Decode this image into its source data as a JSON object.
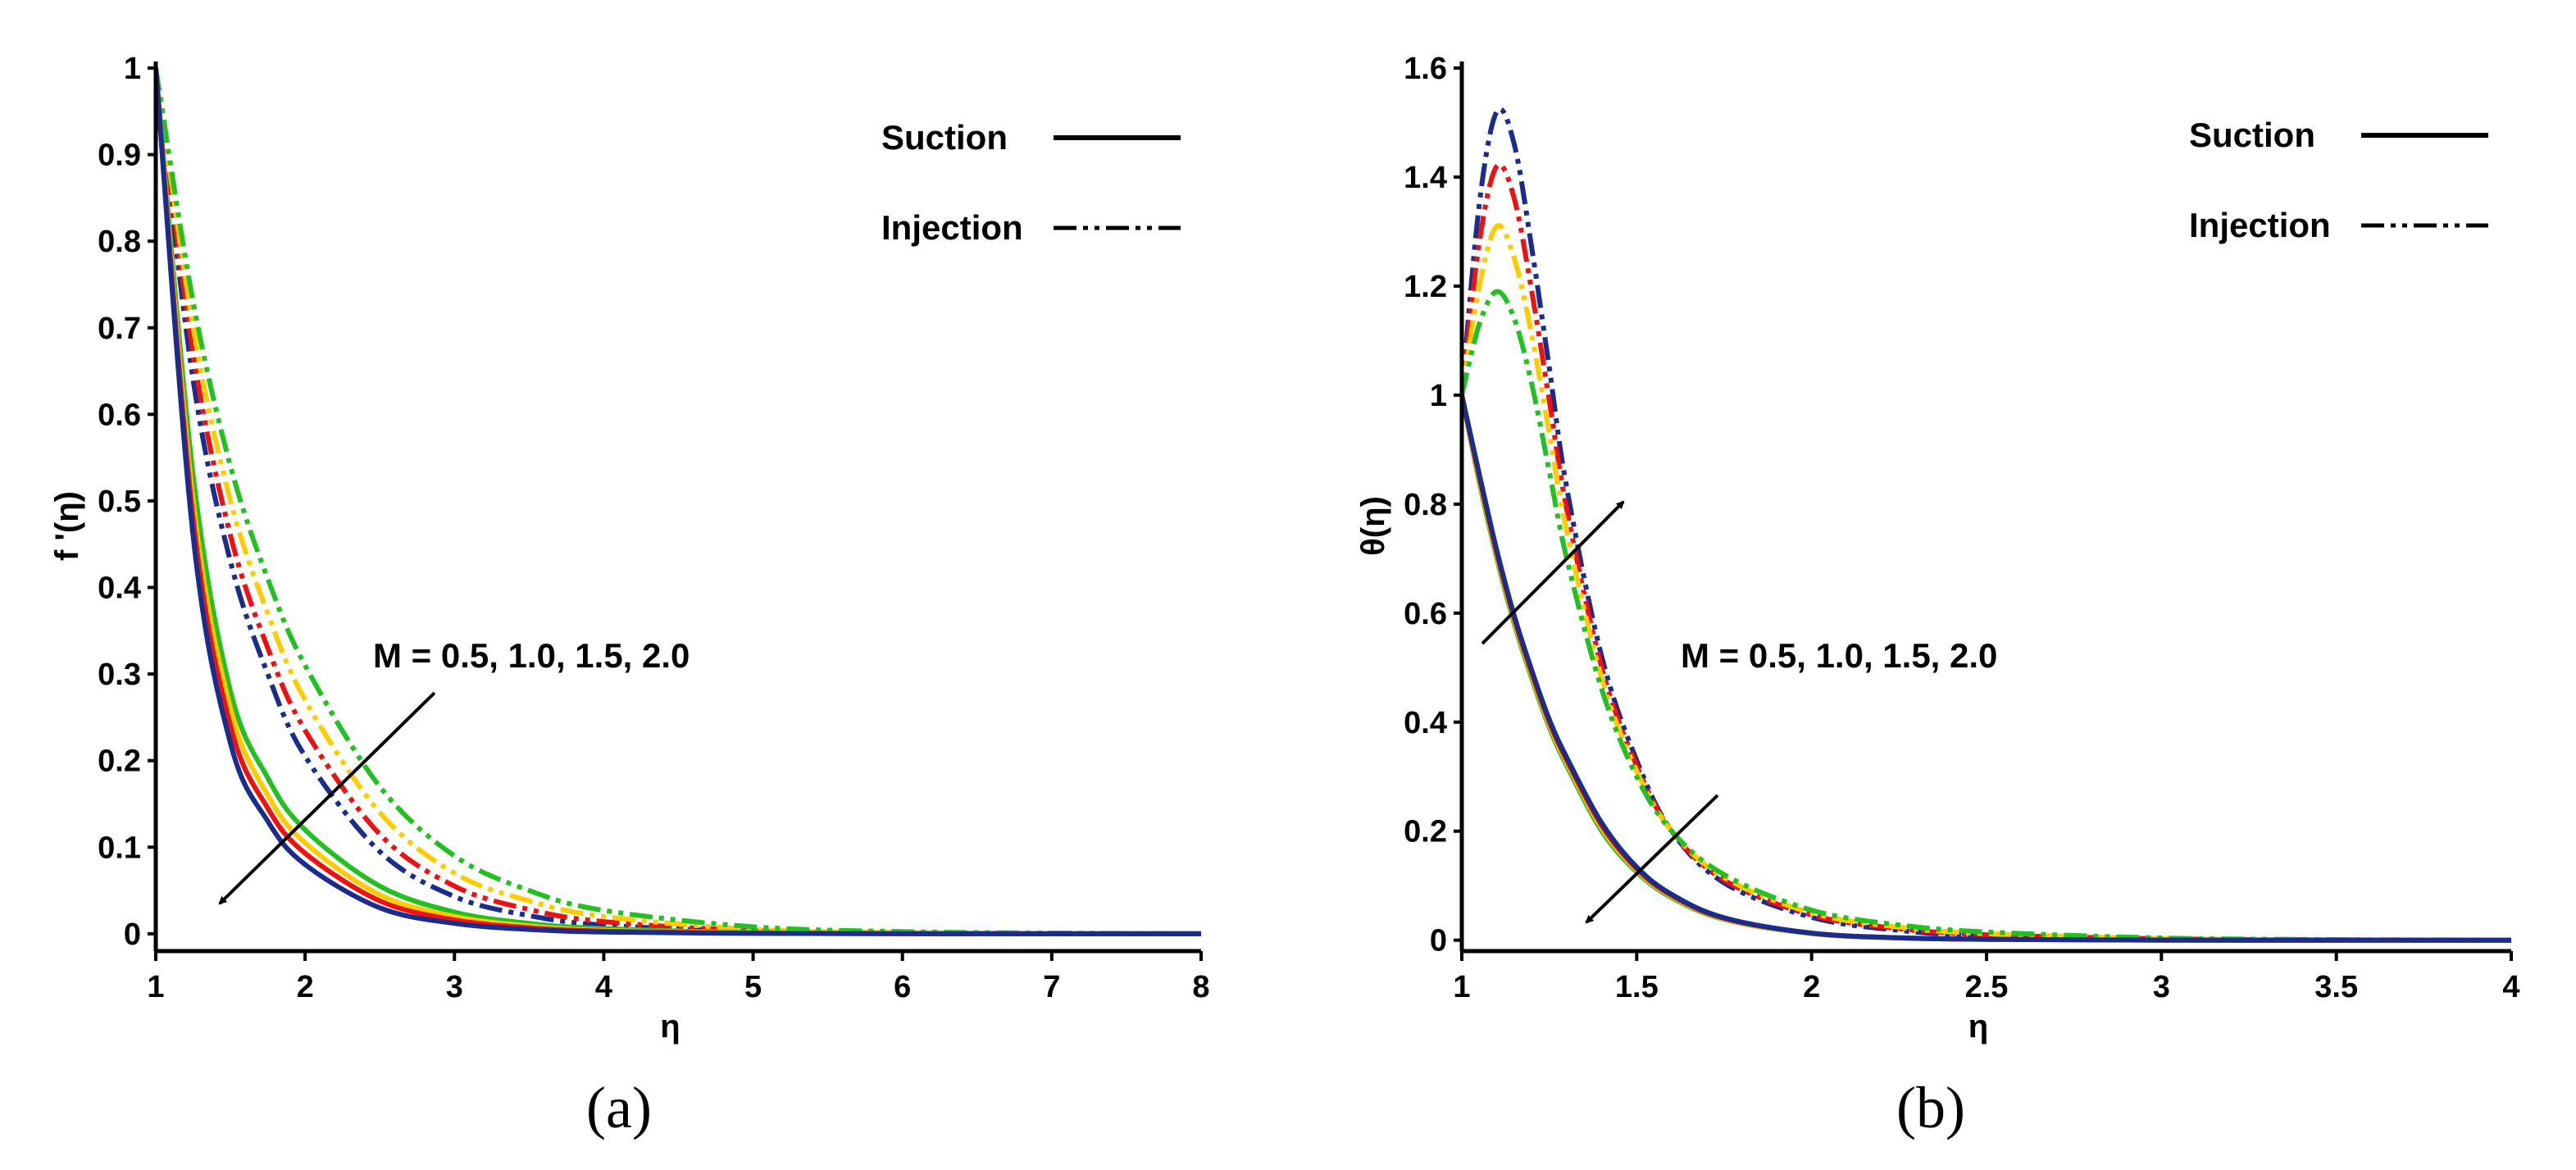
{
  "colors": {
    "green": "#22c022",
    "yellow": "#ffcc00",
    "red": "#ee1111",
    "blue": "#1a2c8c"
  },
  "chart_data": [
    {
      "type": "line",
      "panel_label": "(a)",
      "xlabel": "η",
      "ylabel": "f '(η)",
      "xlim": [
        1,
        8
      ],
      "ylim": [
        -0.02,
        1
      ],
      "xticks": [
        "1",
        "2",
        "3",
        "4",
        "5",
        "6",
        "7",
        "8"
      ],
      "yticks": [
        "0",
        "0.1",
        "0.2",
        "0.3",
        "0.4",
        "0.5",
        "0.6",
        "0.7",
        "0.8",
        "0.9",
        "1"
      ],
      "legend": {
        "suction": "Suction",
        "injection": "Injection",
        "placement": "top-right"
      },
      "annotation": "M = 0.5, 1.0, 1.5, 2.0",
      "x": [
        1,
        1.25,
        1.5,
        1.75,
        2,
        2.5,
        3,
        3.5,
        4,
        5,
        6,
        7,
        8
      ],
      "series": [
        {
          "name": "Suction M=0.5",
          "group": "suction",
          "color": "green",
          "values": [
            1,
            0.53,
            0.28,
            0.18,
            0.12,
            0.055,
            0.025,
            0.012,
            0.006,
            0.0015,
            0.0004,
            0.0001,
            0
          ]
        },
        {
          "name": "Suction M=1.0",
          "group": "suction",
          "color": "yellow",
          "values": [
            1,
            0.5,
            0.26,
            0.16,
            0.105,
            0.045,
            0.02,
            0.009,
            0.004,
            0.001,
            0.0003,
            0.0001,
            0
          ]
        },
        {
          "name": "Suction M=1.5",
          "group": "suction",
          "color": "red",
          "values": [
            1,
            0.48,
            0.24,
            0.145,
            0.093,
            0.038,
            0.016,
            0.007,
            0.003,
            0.0007,
            0.0002,
            0,
            0
          ]
        },
        {
          "name": "Suction M=2.0",
          "group": "suction",
          "color": "blue",
          "values": [
            1,
            0.46,
            0.22,
            0.13,
            0.08,
            0.03,
            0.012,
            0.005,
            0.002,
            0.0005,
            0.0001,
            0,
            0
          ]
        },
        {
          "name": "Injection M=0.5",
          "group": "injection",
          "color": "green",
          "values": [
            1,
            0.73,
            0.54,
            0.41,
            0.31,
            0.17,
            0.09,
            0.05,
            0.027,
            0.008,
            0.0025,
            0.0008,
            0.0002
          ]
        },
        {
          "name": "Injection M=1.0",
          "group": "injection",
          "color": "yellow",
          "values": [
            1,
            0.7,
            0.5,
            0.37,
            0.27,
            0.14,
            0.07,
            0.038,
            0.02,
            0.005,
            0.0015,
            0.0004,
            0.0001
          ]
        },
        {
          "name": "Injection M=1.5",
          "group": "injection",
          "color": "red",
          "values": [
            1,
            0.67,
            0.46,
            0.33,
            0.235,
            0.115,
            0.055,
            0.028,
            0.014,
            0.0035,
            0.001,
            0.0003,
            0.0001
          ]
        },
        {
          "name": "Injection M=2.0",
          "group": "injection",
          "color": "blue",
          "values": [
            1,
            0.64,
            0.43,
            0.3,
            0.205,
            0.095,
            0.043,
            0.021,
            0.01,
            0.0025,
            0.0007,
            0.0002,
            0
          ]
        }
      ]
    },
    {
      "type": "line",
      "panel_label": "(b)",
      "xlabel": "η",
      "ylabel": "θ(η)",
      "xlim": [
        1,
        4
      ],
      "ylim": [
        -0.02,
        1.6
      ],
      "xticks": [
        "1",
        "1.5",
        "2",
        "2.5",
        "3",
        "3.5",
        "4"
      ],
      "yticks": [
        "0",
        "0.2",
        "0.4",
        "0.6",
        "0.8",
        "1",
        "1.2",
        "1.4",
        "1.6"
      ],
      "legend": {
        "suction": "Suction",
        "injection": "Injection",
        "placement": "top-right"
      },
      "annotation": "M = 0.5, 1.0, 1.5, 2.0",
      "x": [
        1,
        1.05,
        1.1,
        1.15,
        1.2,
        1.25,
        1.3,
        1.4,
        1.5,
        1.6,
        1.75,
        2,
        2.25,
        2.5,
        3,
        3.5,
        4
      ],
      "series": [
        {
          "name": "Suction M=0.5",
          "group": "suction",
          "color": "green",
          "values": [
            1,
            0.84,
            0.7,
            0.58,
            0.48,
            0.39,
            0.32,
            0.2,
            0.125,
            0.078,
            0.038,
            0.012,
            0.004,
            0.0015,
            0.0002,
            0,
            0
          ]
        },
        {
          "name": "Suction M=1.0",
          "group": "suction",
          "color": "yellow",
          "values": [
            1,
            0.845,
            0.705,
            0.585,
            0.485,
            0.395,
            0.325,
            0.205,
            0.128,
            0.08,
            0.039,
            0.012,
            0.004,
            0.0015,
            0.0002,
            0,
            0
          ]
        },
        {
          "name": "Suction M=1.5",
          "group": "suction",
          "color": "red",
          "values": [
            1,
            0.85,
            0.71,
            0.59,
            0.49,
            0.4,
            0.33,
            0.21,
            0.131,
            0.082,
            0.04,
            0.013,
            0.0042,
            0.0016,
            0.0002,
            0,
            0
          ]
        },
        {
          "name": "Suction M=2.0",
          "group": "suction",
          "color": "blue",
          "values": [
            1,
            0.855,
            0.715,
            0.595,
            0.495,
            0.405,
            0.335,
            0.215,
            0.134,
            0.084,
            0.041,
            0.013,
            0.0044,
            0.0017,
            0.0002,
            0,
            0
          ]
        },
        {
          "name": "Injection M=0.5",
          "group": "injection",
          "color": "green",
          "values": [
            1,
            1.13,
            1.19,
            1.14,
            1.02,
            0.86,
            0.7,
            0.46,
            0.3,
            0.2,
            0.12,
            0.055,
            0.028,
            0.015,
            0.004,
            0.001,
            0.0003
          ]
        },
        {
          "name": "Injection M=1.0",
          "group": "injection",
          "color": "yellow",
          "values": [
            1,
            1.2,
            1.31,
            1.25,
            1.11,
            0.93,
            0.75,
            0.48,
            0.31,
            0.2,
            0.115,
            0.05,
            0.024,
            0.012,
            0.003,
            0.0008,
            0.0002
          ]
        },
        {
          "name": "Injection M=1.5",
          "group": "injection",
          "color": "red",
          "values": [
            1,
            1.28,
            1.42,
            1.36,
            1.19,
            0.99,
            0.79,
            0.5,
            0.32,
            0.2,
            0.11,
            0.046,
            0.021,
            0.01,
            0.0025,
            0.0006,
            0.0002
          ]
        },
        {
          "name": "Injection M=2.0",
          "group": "injection",
          "color": "blue",
          "values": [
            1,
            1.35,
            1.52,
            1.46,
            1.27,
            1.05,
            0.83,
            0.52,
            0.33,
            0.2,
            0.105,
            0.042,
            0.018,
            0.008,
            0.002,
            0.0005,
            0.0001
          ]
        }
      ]
    }
  ]
}
